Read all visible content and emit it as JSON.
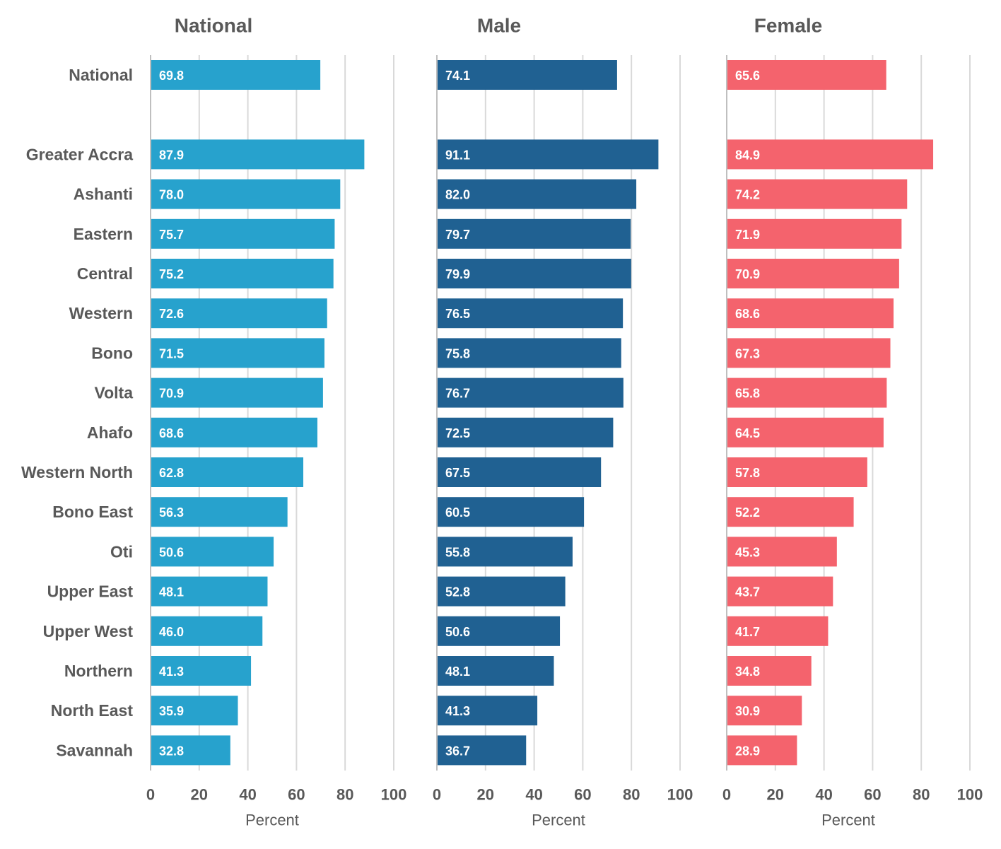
{
  "chart_data": {
    "type": "bar",
    "orientation": "horizontal",
    "categories": [
      "National",
      "",
      "Greater Accra",
      "Ashanti",
      "Eastern",
      "Central",
      "Western",
      "Bono",
      "Volta",
      "Ahafo",
      "Western North",
      "Bono East",
      "Oti",
      "Upper East",
      "Upper West",
      "Northern",
      "North East",
      "Savannah"
    ],
    "xlim": [
      0,
      100
    ],
    "xticks": [
      "0",
      "20",
      "40",
      "60",
      "80",
      "100"
    ],
    "xlabel": "Percent",
    "grid": true,
    "legend": "none",
    "data_labels": true,
    "panels": [
      {
        "title": "National",
        "color": "#27A2CD",
        "values": [
          69.8,
          null,
          87.9,
          78.0,
          75.7,
          75.2,
          72.6,
          71.5,
          70.9,
          68.6,
          62.8,
          56.3,
          50.6,
          48.1,
          46.0,
          41.3,
          35.9,
          32.8
        ],
        "labels": [
          "69.8",
          "",
          "87.9",
          "78.0",
          "75.7",
          "75.2",
          "72.6",
          "71.5",
          "70.9",
          "68.6",
          "62.8",
          "56.3",
          "50.6",
          "48.1",
          "46.0",
          "41.3",
          "35.9",
          "32.8"
        ]
      },
      {
        "title": "Male",
        "color": "#206192",
        "values": [
          74.1,
          null,
          91.1,
          82.0,
          79.7,
          79.9,
          76.5,
          75.8,
          76.7,
          72.5,
          67.5,
          60.5,
          55.8,
          52.8,
          50.6,
          48.1,
          41.3,
          36.7
        ],
        "labels": [
          "74.1",
          "",
          "91.1",
          "82.0",
          "79.7",
          "79.9",
          "76.5",
          "75.8",
          "76.7",
          "72.5",
          "67.5",
          "60.5",
          "55.8",
          "52.8",
          "50.6",
          "48.1",
          "41.3",
          "36.7"
        ]
      },
      {
        "title": "Female",
        "color": "#F4636D",
        "values": [
          65.6,
          null,
          84.9,
          74.2,
          71.9,
          70.9,
          68.6,
          67.3,
          65.8,
          64.5,
          57.8,
          52.2,
          45.3,
          43.7,
          41.7,
          34.8,
          30.9,
          28.9
        ],
        "labels": [
          "65.6",
          "",
          "84.9",
          "74.2",
          "71.9",
          "70.9",
          "68.6",
          "67.3",
          "65.8",
          "64.5",
          "57.8",
          "52.2",
          "45.3",
          "43.7",
          "41.7",
          "34.8",
          "30.9",
          "28.9"
        ]
      }
    ]
  }
}
